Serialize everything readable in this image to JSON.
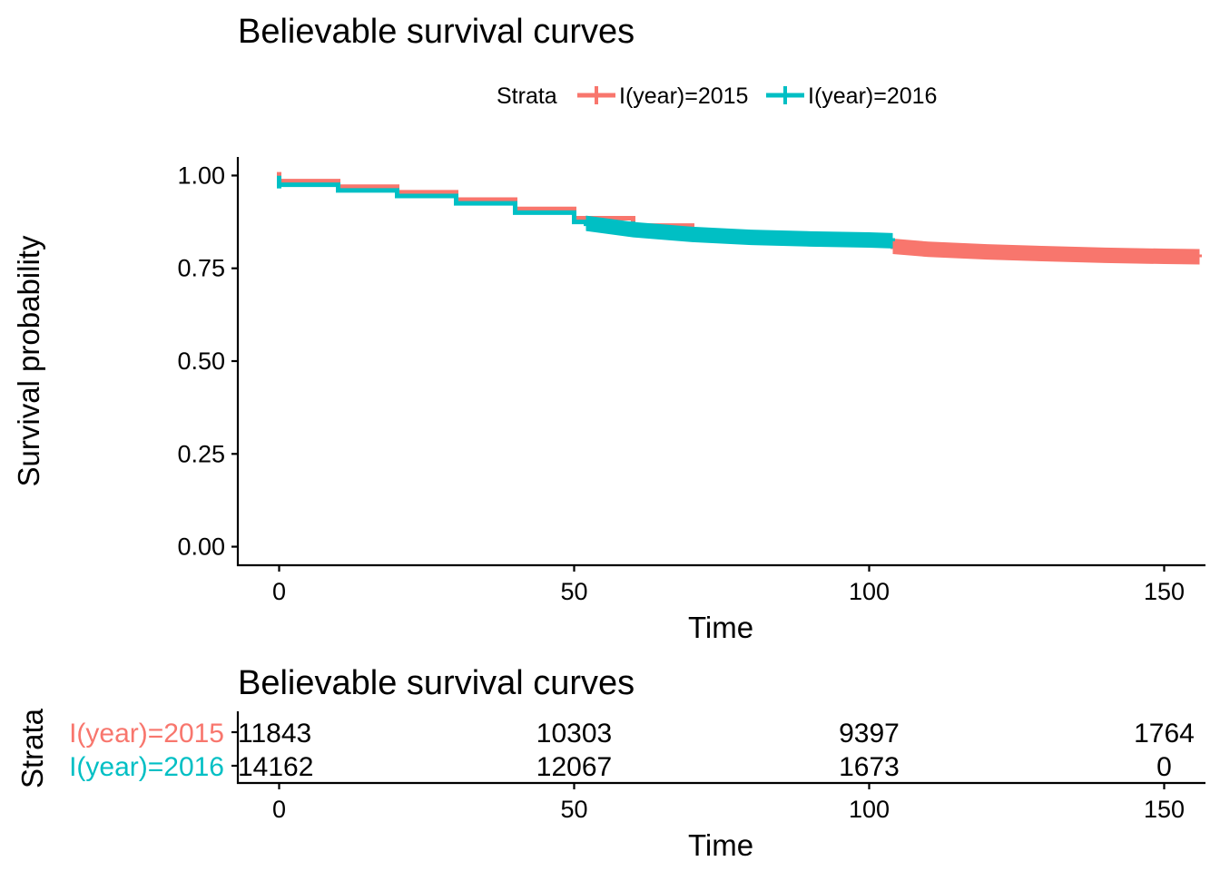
{
  "chart_data": [
    {
      "type": "line",
      "subtype": "kaplan-meier survival curve",
      "title": "Believable survival curves",
      "xlabel": "Time",
      "ylabel": "Survival probability",
      "xlim": [
        -7,
        157
      ],
      "ylim": [
        -0.05,
        1.05
      ],
      "x_ticks": [
        0,
        50,
        100,
        150
      ],
      "y_ticks": [
        0.0,
        0.25,
        0.5,
        0.75,
        1.0
      ],
      "y_tick_labels": [
        "0.00",
        "0.25",
        "0.50",
        "0.75",
        "1.00"
      ],
      "grid": false,
      "legend": {
        "title": "Strata",
        "position": "top"
      },
      "series": [
        {
          "name": "I(year)=2015",
          "color": "#F8766D",
          "x": [
            0,
            10,
            20,
            30,
            40,
            50,
            60,
            70,
            80,
            90,
            100,
            104,
            110,
            120,
            130,
            140,
            150,
            156
          ],
          "y": [
            0.985,
            0.97,
            0.955,
            0.935,
            0.91,
            0.885,
            0.865,
            0.845,
            0.83,
            0.822,
            0.815,
            0.808,
            0.8,
            0.793,
            0.788,
            0.784,
            0.781,
            0.78
          ],
          "censor_dense_range": [
            104,
            156
          ]
        },
        {
          "name": "I(year)=2016",
          "color": "#00BFC4",
          "x": [
            0,
            10,
            20,
            30,
            40,
            50,
            52,
            60,
            70,
            80,
            90,
            100,
            104
          ],
          "y": [
            0.975,
            0.96,
            0.945,
            0.925,
            0.9,
            0.875,
            0.87,
            0.853,
            0.84,
            0.832,
            0.828,
            0.825,
            0.823
          ],
          "censor_dense_range": [
            52,
            104
          ]
        }
      ]
    },
    {
      "type": "table",
      "subtype": "number at risk",
      "title": "Believable survival curves",
      "xlabel": "Time",
      "ylabel": "Strata",
      "xlim": [
        -7,
        157
      ],
      "x_ticks": [
        0,
        50,
        100,
        150
      ],
      "rows": [
        {
          "name": "I(year)=2015",
          "color": "#F8766D",
          "times": [
            0,
            50,
            100,
            150
          ],
          "values": [
            "11843",
            "10303",
            "9397",
            "1764"
          ]
        },
        {
          "name": "I(year)=2016",
          "color": "#00BFC4",
          "times": [
            0,
            50,
            100,
            150
          ],
          "values": [
            "14162",
            "12067",
            "1673",
            "0"
          ]
        }
      ]
    }
  ]
}
